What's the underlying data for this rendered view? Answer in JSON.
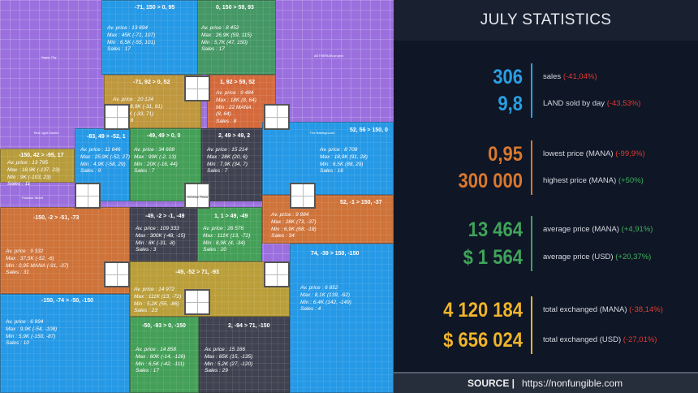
{
  "map": {
    "districts": [
      "Vegas City",
      "AETHERIAN project",
      "Red Light District",
      "The Battleground",
      "Fashion Street"
    ],
    "genesis_plaza": "Genesis Plaza",
    "regions": [
      {
        "coords": "-71, 150 > 0, 95",
        "stats": [
          "Av. price : 13 694",
          "Max : 45K (-71, 107)",
          "Min : 6,5K (-55, 101)",
          "Sales : 17"
        ],
        "color": "#1e9ce6"
      },
      {
        "coords": "0, 150 > 59, 93",
        "stats": [
          "Av. price : 8 452",
          "Max : 26,9K (59, 115)",
          "Min : 5,7K (47, 150)",
          "Sales : 17"
        ],
        "color": "#3f9a5c"
      },
      {
        "coords": "-71, 92 > 0, 52",
        "stats": [
          "Av. price : 10 124",
          "Max : 18,9K (-31, 91)",
          "Min : 8K (-33, 71)",
          "Sales : 8"
        ],
        "color": "#c29a32"
      },
      {
        "coords": "1, 92 > 59, 52",
        "stats": [
          "Av. price : 9 484",
          "Max : 18K (8, 64)",
          "Min : 22 MANA",
          "(8, 64)",
          "Sales : 8"
        ],
        "color": "#d86a30"
      },
      {
        "coords": "-150, 42 > -95, 17",
        "stats": [
          "Av. price : 13 795",
          "Max : 18,9K (-137, 23)",
          "Min : 9K (-103, 23)",
          "Sales : 11"
        ],
        "color": "#b9a030"
      },
      {
        "coords": "-83, 49 > -52, 1",
        "stats": [
          "Av. price : 11 646",
          "Max : 25,9K (-52, 27)",
          "Min : 4,9K (-58, 29)",
          "Sales : 9"
        ],
        "color": "#1e9ce6"
      },
      {
        "coords": "-49, 49 > 0, 0",
        "stats": [
          "Av. price : 34 608",
          "Max : 99K (-2, 13)",
          "Min : 20K (-16, 44)",
          "Sales : 7"
        ],
        "color": "#3ea34e"
      },
      {
        "coords": "2, 49 > 49, 2",
        "stats": [
          "Av. price : 15 214",
          "Max : 28K (20, 6)",
          "Min : 7,9K (34, 7)",
          "Sales : 7"
        ],
        "color": "#3a3f47"
      },
      {
        "coords": "52, 56 > 150, 0",
        "stats": [
          "Av. price : 8 708",
          "Max : 18,9K (91, 28)",
          "Min : 6,5K (88, 29)",
          "Sales : 16"
        ],
        "color": "#1e9ce6"
      },
      {
        "coords": "-150, -2 > -51, -73",
        "stats": [
          "Av. price : 9 332",
          "Max : 37,5K (-52, -6)",
          "Min : 0,95 MANA (-91, -37)",
          "Sales : 31"
        ],
        "color": "#d2742e"
      },
      {
        "coords": "-150, -74 > -50, -150",
        "stats": [
          "Av. price : 6 994",
          "Max : 9,9K (-54, -108)",
          "Min : 5,9K (-150, -87)",
          "Sales : 10"
        ],
        "color": "#1e9ce6"
      },
      {
        "coords": "-49, -2 > -1, -49",
        "stats": [
          "Av. price : 109 333",
          "Max : 300K (-48, -15)",
          "Min : 8K (-31, -8)",
          "Sales : 3"
        ],
        "color": "#3a3f47"
      },
      {
        "coords": "1, 1 > 49, -49",
        "stats": [
          "Av. price : 26 576",
          "Max : 111K (13, -72)",
          "Min : 8,9K (4, -34)",
          "Sales : 20"
        ],
        "color": "#3ea34e"
      },
      {
        "coords": "52, -1 > 150, -37",
        "stats": [
          "Av. price : 9 984",
          "Max : 28K (73, -37)",
          "Min : 6,9K (68, -18)",
          "Sales : 34"
        ],
        "color": "#d2742e"
      },
      {
        "coords": "74, -39 > 150, -150",
        "stats": [
          "Av. price : 6 852",
          "Max : 8,1K (139, -62)",
          "Min : 6,4K (142, -149)",
          "Sales : 4"
        ],
        "color": "#1e9ce6"
      },
      {
        "coords": "-49, -52 > 71, -93",
        "stats": [
          "Av. price : 14 972",
          "Max : 111K (13, -72)",
          "Min : 5,2K (55, -86)",
          "Sales : 23"
        ],
        "color": "#bda22e"
      },
      {
        "coords": "-50, -93 > 0, -150",
        "stats": [
          "Av. price : 14 858",
          "Max : 60K (-14, -128)",
          "Min : 6,5K (-42, -111)",
          "Sales : 17"
        ],
        "color": "#3ea34e"
      },
      {
        "coords": "2, -94 > 71, -150",
        "stats": [
          "Av. price : 15 166",
          "Max : 65K (15, -135)",
          "Min : 5,2K (27, -120)",
          "Sales : 29"
        ],
        "color": "#3a3f47"
      }
    ]
  },
  "panel": {
    "title": "JULY STATISTICS",
    "groups": [
      {
        "color": "#2a9fe4",
        "rows": [
          {
            "value": "306",
            "label": "sales",
            "change": "(-41,04%)",
            "trend": "down"
          },
          {
            "value": "9,8",
            "label": "LAND sold by day",
            "change": "(-43,53%)",
            "trend": "down"
          }
        ]
      },
      {
        "color": "#d9782f",
        "rows": [
          {
            "value": "0,95",
            "label": "lowest price (MANA)",
            "change": "(-99,9%)",
            "trend": "down"
          },
          {
            "value": "300 000",
            "label": "highest price (MANA)",
            "change": "(+50%)",
            "trend": "up"
          }
        ]
      },
      {
        "color": "#3fa35a",
        "rows": [
          {
            "value": "13 464",
            "label": "average price (MANA)",
            "change": "(+4,91%)",
            "trend": "up"
          },
          {
            "value": "$ 1 564",
            "label": "average price (USD)",
            "change": "(+20,37%)",
            "trend": "up"
          }
        ]
      },
      {
        "color": "#f0b429",
        "rows": [
          {
            "value": "4 120 184",
            "label": "total exchanged (MANA)",
            "change": "(-38,14%)",
            "trend": "down"
          },
          {
            "value": "$ 656 024",
            "label": "total exchanged (USD)",
            "change": "(-27,01%)",
            "trend": "down"
          }
        ]
      }
    ],
    "colors": {
      "down": "#e23b2e",
      "up": "#3fb25a"
    },
    "footer": {
      "source_label": "SOURCE |",
      "url": "https://nonfungible.com"
    }
  }
}
